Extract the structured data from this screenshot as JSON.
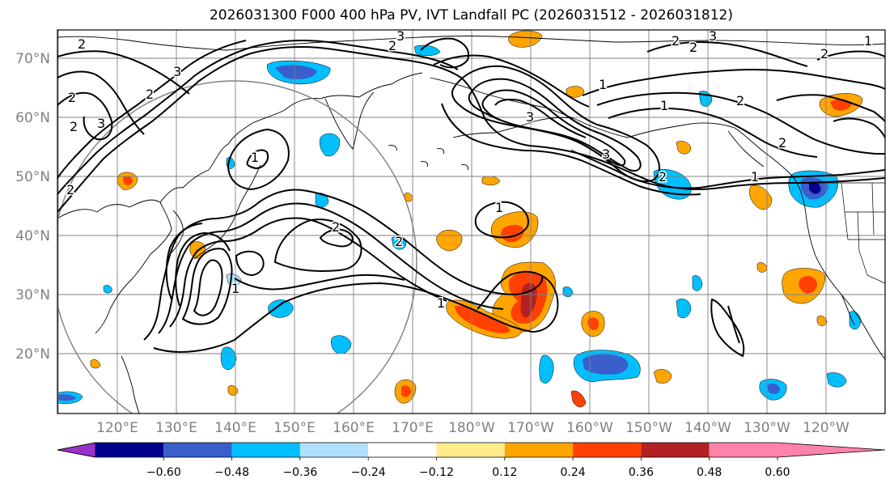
{
  "title": "2026031300 F000 400 hPa PV, IVT Landfall PC (2026031512 - 2026031812)",
  "map": {
    "lat_labels": [
      "70°N",
      "60°N",
      "50°N",
      "40°N",
      "30°N",
      "20°N"
    ],
    "lon_labels": [
      "120°E",
      "130°E",
      "140°E",
      "150°E",
      "160°E",
      "170°E",
      "180°W",
      "170°W",
      "160°W",
      "150°W",
      "140°W",
      "130°W",
      "120°W"
    ],
    "contour_labels": [
      "1",
      "2",
      "3"
    ]
  },
  "colorbar": {
    "ticks": [
      "−0.60",
      "−0.48",
      "−0.36",
      "−0.24",
      "−0.12",
      "0.12",
      "0.24",
      "0.36",
      "0.48",
      "0.60"
    ],
    "colors": [
      "#9932cc",
      "#00008b",
      "#3a5fcd",
      "#00bfff",
      "#b0e2ff",
      "#ffffff",
      "#ffec8b",
      "#ffa500",
      "#ff4000",
      "#b22222",
      "#ff82ab"
    ]
  },
  "colors": {
    "pos_low": "#ffec8b",
    "pos_mid": "#ffa500",
    "pos_high": "#ff4000",
    "pos_max": "#b22222",
    "neg_low": "#b0e2ff",
    "neg_mid": "#00bfff",
    "neg_high": "#3a5fcd",
    "neg_max": "#00008b"
  }
}
